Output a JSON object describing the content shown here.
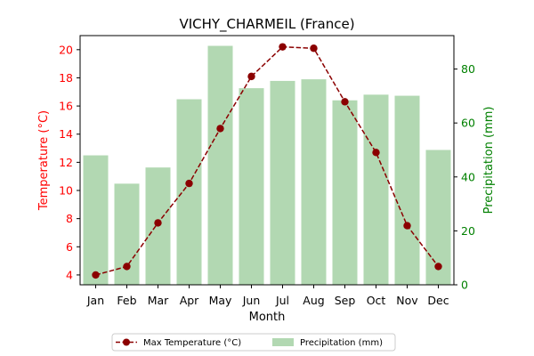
{
  "chart_data": {
    "type": "bar+line",
    "title": "VICHY_CHARMEIL (France)",
    "xlabel": "Month",
    "ylabel_left": "Temperature (°C)",
    "ylabel_right": "Precipitation (mm)",
    "categories": [
      "Jan",
      "Feb",
      "Mar",
      "Apr",
      "May",
      "Jun",
      "Jul",
      "Aug",
      "Sep",
      "Oct",
      "Nov",
      "Dec"
    ],
    "left_axis": {
      "ylim": [
        3.3,
        21.0
      ],
      "ticks": [
        4,
        6,
        8,
        10,
        12,
        14,
        16,
        18,
        20
      ],
      "color": "#ff0000"
    },
    "right_axis": {
      "ylim": [
        0,
        92.4
      ],
      "ticks": [
        0,
        20,
        40,
        60,
        80
      ],
      "color": "#008000"
    },
    "series": [
      {
        "name": "Max Temperature (°C)",
        "type": "line",
        "axis": "left",
        "color": "#8b0000",
        "values": [
          4.0,
          4.6,
          7.7,
          10.5,
          14.4,
          18.1,
          20.2,
          20.1,
          16.3,
          12.7,
          7.5,
          4.6
        ]
      },
      {
        "name": "Precipitation (mm)",
        "type": "bar",
        "axis": "right",
        "color": "#b2d8b2",
        "values": [
          48.0,
          37.5,
          43.5,
          68.8,
          88.6,
          72.9,
          75.6,
          76.2,
          68.4,
          70.5,
          70.1,
          50.0
        ]
      }
    ],
    "legend": "bottom-center",
    "grid": false
  }
}
